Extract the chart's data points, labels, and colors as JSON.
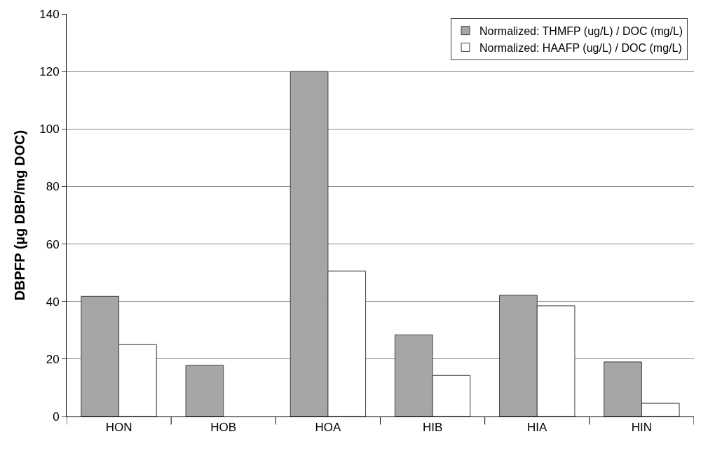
{
  "chart_data": {
    "type": "bar",
    "ylabel": "DBPFP (µg DBP/mg DOC)",
    "categories": [
      "HON",
      "HOB",
      "HOA",
      "HIB",
      "HIA",
      "HIN"
    ],
    "series": [
      {
        "name": "Normalized: THMFP (ug/L) / DOC (mg/L)",
        "color": "#a6a6a6",
        "values": [
          41.8,
          17.8,
          120,
          28.4,
          42.2,
          19
        ]
      },
      {
        "name": "Normalized: HAAFP (ug/L) / DOC (mg/L)",
        "color": "#ffffff",
        "values": [
          25,
          null,
          50.6,
          14.3,
          38.5,
          4.6
        ]
      }
    ],
    "ylim": [
      0,
      140
    ],
    "yticks": [
      0,
      20,
      40,
      60,
      80,
      100,
      120,
      140
    ],
    "grid": "y",
    "legend": "top right"
  }
}
